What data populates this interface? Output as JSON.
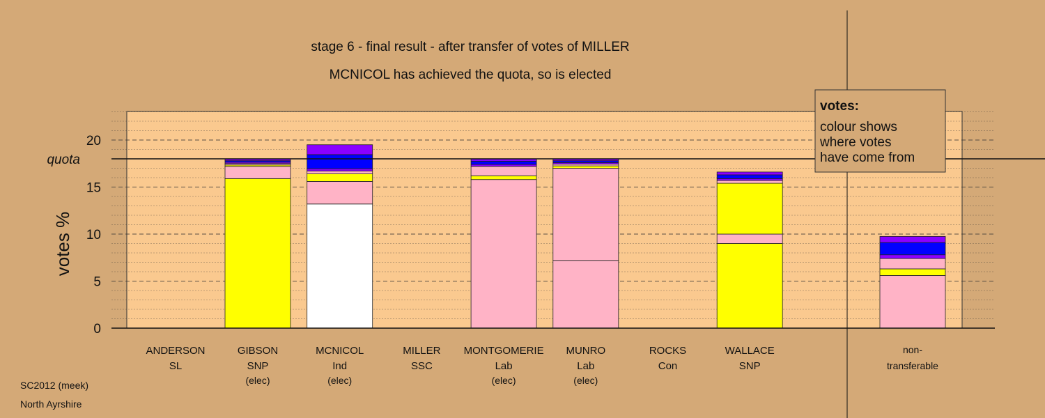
{
  "chart_data": {
    "type": "bar",
    "stacked": true,
    "title": "stage 6 - final result - after transfer of votes of MILLER",
    "subtitle": "MCNICOL has achieved the quota, so is elected",
    "ylabel": "votes %",
    "ylim": [
      0,
      23
    ],
    "yticks": [
      0,
      5,
      10,
      15,
      20
    ],
    "quota": 18.0,
    "quota_label": "quota",
    "grid": true,
    "legend_position": "top-right",
    "legend": {
      "title": "votes:",
      "lines": [
        "colour shows",
        "where votes",
        "have come from"
      ]
    },
    "candidates": [
      {
        "name": "ANDERSON",
        "party": "SL",
        "status": "",
        "segments": []
      },
      {
        "name": "GIBSON",
        "party": "SNP",
        "status": "(elec)",
        "segments": [
          {
            "color": "#ffff00",
            "value": 15.9
          },
          {
            "color": "#ffb3c6",
            "value": 1.3
          },
          {
            "color": "#ffff00",
            "value": 0.15
          },
          {
            "color": "#ffb3c6",
            "value": 0.15
          },
          {
            "color": "#8b00ff",
            "value": 0.15
          },
          {
            "color": "#0000ff",
            "value": 0.15
          },
          {
            "color": "#8b00ff",
            "value": 0.2
          }
        ]
      },
      {
        "name": "MCNICOL",
        "party": "Ind",
        "status": "(elec)",
        "segments": [
          {
            "color": "#ffffff",
            "value": 13.2
          },
          {
            "color": "#ffb3c6",
            "value": 2.4
          },
          {
            "color": "#ffff00",
            "value": 0.8
          },
          {
            "color": "#ffb3c6",
            "value": 0.3
          },
          {
            "color": "#8b00ff",
            "value": 0.25
          },
          {
            "color": "#0000ff",
            "value": 1.5
          },
          {
            "color": "#8b00ff",
            "value": 1.05
          }
        ]
      },
      {
        "name": "MILLER",
        "party": "SSC",
        "status": "",
        "segments": []
      },
      {
        "name": "MONTGOMERIE",
        "party": "Lab",
        "status": "(elec)",
        "segments": [
          {
            "color": "#ffb3c6",
            "value": 15.8
          },
          {
            "color": "#ffff00",
            "value": 0.4
          },
          {
            "color": "#ffb3c6",
            "value": 1.0
          },
          {
            "color": "#8b00ff",
            "value": 0.2
          },
          {
            "color": "#0000ff",
            "value": 0.35
          },
          {
            "color": "#8b00ff",
            "value": 0.25
          }
        ]
      },
      {
        "name": "MUNRO",
        "party": "Lab",
        "status": "(elec)",
        "segments": [
          {
            "color": "#ffb3c6",
            "value": 7.2
          },
          {
            "color": "#ffb3c6",
            "value": 9.8
          },
          {
            "color": "#ffff00",
            "value": 0.25
          },
          {
            "color": "#ffb3c6",
            "value": 0.2
          },
          {
            "color": "#8b00ff",
            "value": 0.15
          },
          {
            "color": "#0000ff",
            "value": 0.2
          },
          {
            "color": "#8b00ff",
            "value": 0.2
          }
        ]
      },
      {
        "name": "ROCKS",
        "party": "Con",
        "status": "",
        "segments": []
      },
      {
        "name": "WALLACE",
        "party": "SNP",
        "status": "",
        "segments": [
          {
            "color": "#ffff00",
            "value": 9.0
          },
          {
            "color": "#ffb3c6",
            "value": 1.0
          },
          {
            "color": "#ffff00",
            "value": 5.4
          },
          {
            "color": "#ffb3c6",
            "value": 0.3
          },
          {
            "color": "#8b00ff",
            "value": 0.2
          },
          {
            "color": "#0000ff",
            "value": 0.4
          },
          {
            "color": "#8b00ff",
            "value": 0.3
          }
        ]
      }
    ],
    "nontransferable": {
      "label_line1": "non-",
      "label_line2": "transferable",
      "segments": [
        {
          "color": "#ffb3c6",
          "value": 5.6
        },
        {
          "color": "#ffff00",
          "value": 0.7
        },
        {
          "color": "#ffb3c6",
          "value": 1.1
        },
        {
          "color": "#8b00ff",
          "value": 0.4
        },
        {
          "color": "#0000ff",
          "value": 1.3
        },
        {
          "color": "#8b00ff",
          "value": 0.65
        }
      ]
    }
  },
  "footer": {
    "line1": "SC2012 (meek)",
    "line2": "North Ayrshire"
  },
  "colors": {
    "background": "#d4a977",
    "plot_area": "#fac98f"
  }
}
